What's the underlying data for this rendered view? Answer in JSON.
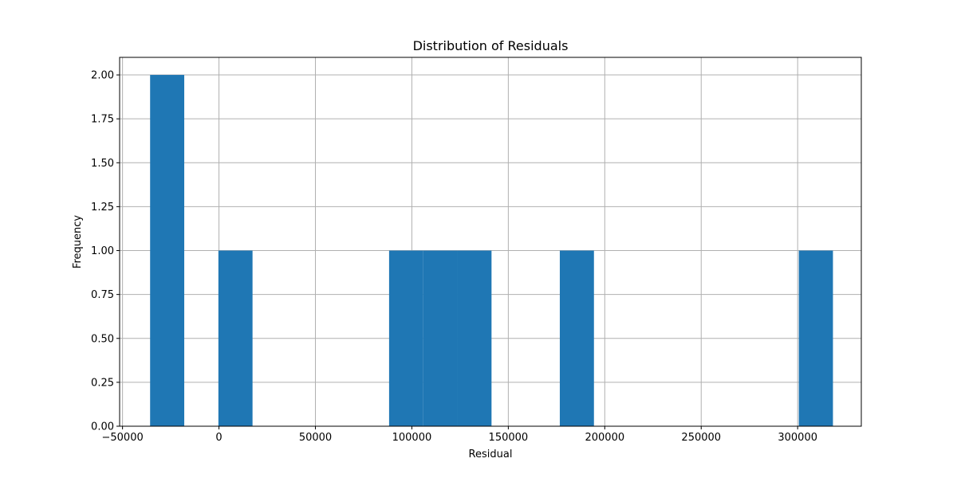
{
  "chart_data": {
    "type": "bar",
    "title": "Distribution of Residuals",
    "xlabel": "Residual",
    "ylabel": "Frequency",
    "xlim": [
      -51500,
      333000
    ],
    "ylim": [
      0,
      2.1
    ],
    "grid": true,
    "bar_color": "#1f77b4",
    "bins": [
      {
        "x0": -35700,
        "x1": -18000,
        "value": 2
      },
      {
        "x0": -18000,
        "x1": -300,
        "value": 0
      },
      {
        "x0": -300,
        "x1": 17400,
        "value": 1
      },
      {
        "x0": 17400,
        "x1": 35100,
        "value": 0
      },
      {
        "x0": 35100,
        "x1": 52800,
        "value": 0
      },
      {
        "x0": 52800,
        "x1": 70500,
        "value": 0
      },
      {
        "x0": 70500,
        "x1": 88200,
        "value": 0
      },
      {
        "x0": 88200,
        "x1": 105900,
        "value": 1
      },
      {
        "x0": 105900,
        "x1": 123600,
        "value": 1
      },
      {
        "x0": 123600,
        "x1": 141300,
        "value": 1
      },
      {
        "x0": 141300,
        "x1": 159000,
        "value": 0
      },
      {
        "x0": 159000,
        "x1": 176700,
        "value": 0
      },
      {
        "x0": 176700,
        "x1": 194400,
        "value": 1
      },
      {
        "x0": 194400,
        "x1": 212100,
        "value": 0
      },
      {
        "x0": 212100,
        "x1": 229800,
        "value": 0
      },
      {
        "x0": 229800,
        "x1": 247500,
        "value": 0
      },
      {
        "x0": 247500,
        "x1": 265200,
        "value": 0
      },
      {
        "x0": 265200,
        "x1": 282900,
        "value": 0
      },
      {
        "x0": 282900,
        "x1": 300600,
        "value": 0
      },
      {
        "x0": 300600,
        "x1": 318300,
        "value": 1
      }
    ],
    "x_ticks": [
      {
        "value": -50000,
        "label": "−50000"
      },
      {
        "value": 0,
        "label": "0"
      },
      {
        "value": 50000,
        "label": "50000"
      },
      {
        "value": 100000,
        "label": "100000"
      },
      {
        "value": 150000,
        "label": "150000"
      },
      {
        "value": 200000,
        "label": "200000"
      },
      {
        "value": 250000,
        "label": "250000"
      },
      {
        "value": 300000,
        "label": "300000"
      }
    ],
    "y_ticks": [
      {
        "value": 0.0,
        "label": "0.00"
      },
      {
        "value": 0.25,
        "label": "0.25"
      },
      {
        "value": 0.5,
        "label": "0.50"
      },
      {
        "value": 0.75,
        "label": "0.75"
      },
      {
        "value": 1.0,
        "label": "1.00"
      },
      {
        "value": 1.25,
        "label": "1.25"
      },
      {
        "value": 1.5,
        "label": "1.50"
      },
      {
        "value": 1.75,
        "label": "1.75"
      },
      {
        "value": 2.0,
        "label": "2.00"
      }
    ]
  }
}
